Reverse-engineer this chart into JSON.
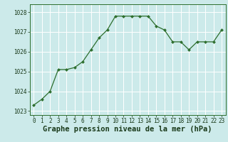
{
  "x": [
    0,
    1,
    2,
    3,
    4,
    5,
    6,
    7,
    8,
    9,
    10,
    11,
    12,
    13,
    14,
    15,
    16,
    17,
    18,
    19,
    20,
    21,
    22,
    23
  ],
  "y": [
    1023.3,
    1023.6,
    1024.0,
    1025.1,
    1025.1,
    1025.2,
    1025.5,
    1026.1,
    1026.7,
    1027.1,
    1027.8,
    1027.8,
    1027.8,
    1027.8,
    1027.8,
    1027.3,
    1027.1,
    1026.5,
    1026.5,
    1026.1,
    1026.5,
    1026.5,
    1026.5,
    1027.1
  ],
  "line_color": "#2d6e2d",
  "marker": "D",
  "marker_size": 2.0,
  "background_color": "#cceaea",
  "grid_color": "#ffffff",
  "xlabel": "Graphe pression niveau de la mer (hPa)",
  "xlabel_fontsize": 7.5,
  "xlabel_color": "#1a3a1a",
  "xlabel_bold": true,
  "ylim": [
    1022.8,
    1028.4
  ],
  "xlim": [
    -0.5,
    23.5
  ],
  "yticks": [
    1023,
    1024,
    1025,
    1026,
    1027,
    1028
  ],
  "xticks": [
    0,
    1,
    2,
    3,
    4,
    5,
    6,
    7,
    8,
    9,
    10,
    11,
    12,
    13,
    14,
    15,
    16,
    17,
    18,
    19,
    20,
    21,
    22,
    23
  ],
  "tick_fontsize": 5.5,
  "tick_color": "#1a3a1a",
  "linewidth": 0.9
}
